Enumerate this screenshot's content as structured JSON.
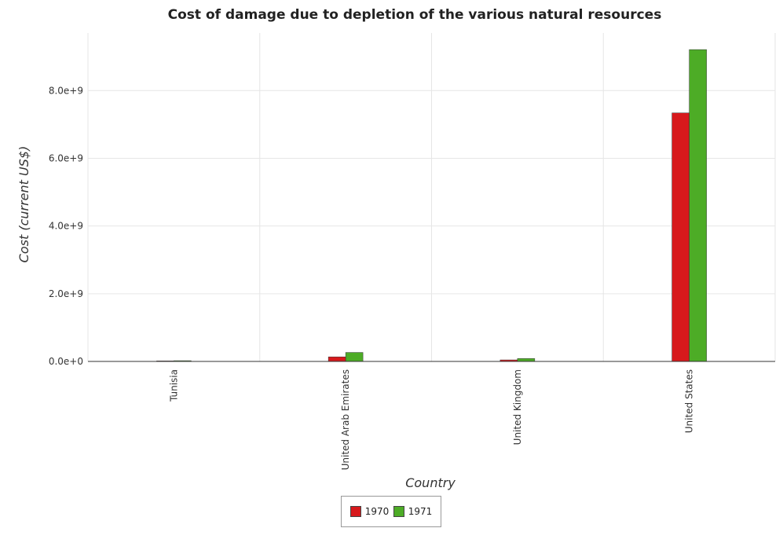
{
  "chart_data": {
    "type": "bar",
    "title": "Cost of damage due to depletion of the various natural resources",
    "xlabel": "Country",
    "ylabel": "Cost (current US$)",
    "categories": [
      "Tunisia",
      "United Arab Emirates",
      "United Kingdom",
      "United States"
    ],
    "series": [
      {
        "name": "1970",
        "color": "#d7191c",
        "values": [
          15000000,
          135000000,
          45000000,
          7340000000
        ]
      },
      {
        "name": "1971",
        "color": "#4dac26",
        "values": [
          22000000,
          265000000,
          85000000,
          9210000000
        ]
      }
    ],
    "ylim": [
      0,
      9700000000
    ],
    "yticks": [
      0,
      2000000000,
      4000000000,
      6000000000,
      8000000000
    ],
    "ytick_labels": [
      "0.0e+0",
      "2.0e+9",
      "4.0e+9",
      "6.0e+9",
      "8.0e+9"
    ],
    "grid": true,
    "legend_position": "bottom-center"
  }
}
